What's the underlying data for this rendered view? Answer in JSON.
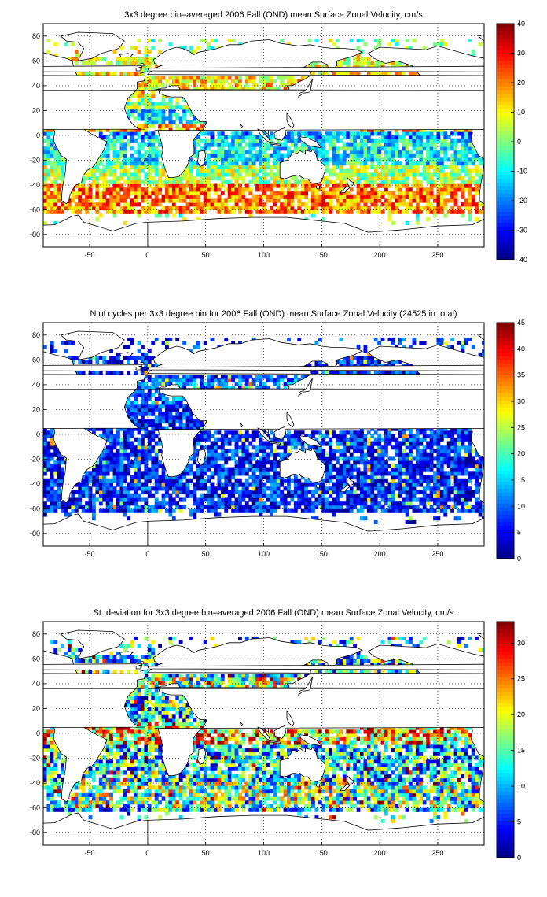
{
  "colors": {
    "colormap": "jet",
    "land_fill": "#ffffff",
    "coastline": "#000000",
    "grid": "#000000",
    "background": "#ffffff"
  },
  "chart_data": [
    {
      "type": "heatmap",
      "title": "3x3 degree bin–averaged 2006 Fall (OND) mean Surface Zonal Velocity, cm/s",
      "xlim": [
        -90,
        290
      ],
      "ylim": [
        -90,
        90
      ],
      "xticks": [
        -50,
        0,
        50,
        100,
        150,
        200,
        250
      ],
      "yticks": [
        80,
        60,
        40,
        20,
        0,
        -20,
        -40,
        -60,
        -80
      ],
      "xtick_labels": [
        "-50",
        "0",
        "50",
        "100",
        "150",
        "200",
        "250"
      ],
      "ytick_labels": [
        "80",
        "60",
        "40",
        "20",
        "0",
        "-20",
        "-40",
        "-60",
        "-80"
      ],
      "grid": "dotted",
      "bin_size_deg": 3,
      "colorbar": {
        "min": -40,
        "max": 40,
        "ticks": [
          40,
          30,
          20,
          10,
          0,
          -10,
          -20,
          -30,
          -40
        ],
        "tick_labels": [
          "40",
          "30",
          "20",
          "10",
          "0",
          "-10",
          "-20",
          "-30",
          "-40"
        ]
      }
    },
    {
      "type": "heatmap",
      "title": "N of cycles per 3x3 degree bin for 2006 Fall (OND) mean Surface Zonal Velocity (24525 in total)",
      "xlim": [
        -90,
        290
      ],
      "ylim": [
        -90,
        90
      ],
      "xticks": [
        -50,
        0,
        50,
        100,
        150,
        200,
        250
      ],
      "yticks": [
        80,
        60,
        40,
        20,
        0,
        -20,
        -40,
        -60,
        -80
      ],
      "xtick_labels": [
        "-50",
        "0",
        "50",
        "100",
        "150",
        "200",
        "250"
      ],
      "ytick_labels": [
        "80",
        "60",
        "40",
        "20",
        "0",
        "-20",
        "-40",
        "-60",
        "-80"
      ],
      "grid": "dotted",
      "bin_size_deg": 3,
      "total_cycles": 24525,
      "colorbar": {
        "min": 0,
        "max": 45,
        "ticks": [
          45,
          40,
          35,
          30,
          25,
          20,
          15,
          10,
          5,
          0
        ],
        "tick_labels": [
          "45",
          "40",
          "35",
          "30",
          "25",
          "20",
          "15",
          "10",
          "5",
          "0"
        ]
      }
    },
    {
      "type": "heatmap",
      "title": "St. deviation for 3x3 degree bin–averaged 2006 Fall (OND) mean Surface Zonal Velocity, cm/s",
      "xlim": [
        -90,
        290
      ],
      "ylim": [
        -90,
        90
      ],
      "xticks": [
        -50,
        0,
        50,
        100,
        150,
        200,
        250
      ],
      "yticks": [
        80,
        60,
        40,
        20,
        0,
        -20,
        -40,
        -60,
        -80
      ],
      "xtick_labels": [
        "-50",
        "0",
        "50",
        "100",
        "150",
        "200",
        "250"
      ],
      "ytick_labels": [
        "80",
        "60",
        "40",
        "20",
        "0",
        "-20",
        "-40",
        "-60",
        "-80"
      ],
      "grid": "dotted",
      "bin_size_deg": 3,
      "colorbar": {
        "min": 0,
        "max": 33,
        "ticks": [
          30,
          25,
          20,
          15,
          10,
          5,
          0
        ],
        "tick_labels": [
          "30",
          "25",
          "20",
          "15",
          "10",
          "5",
          "0"
        ]
      }
    }
  ]
}
